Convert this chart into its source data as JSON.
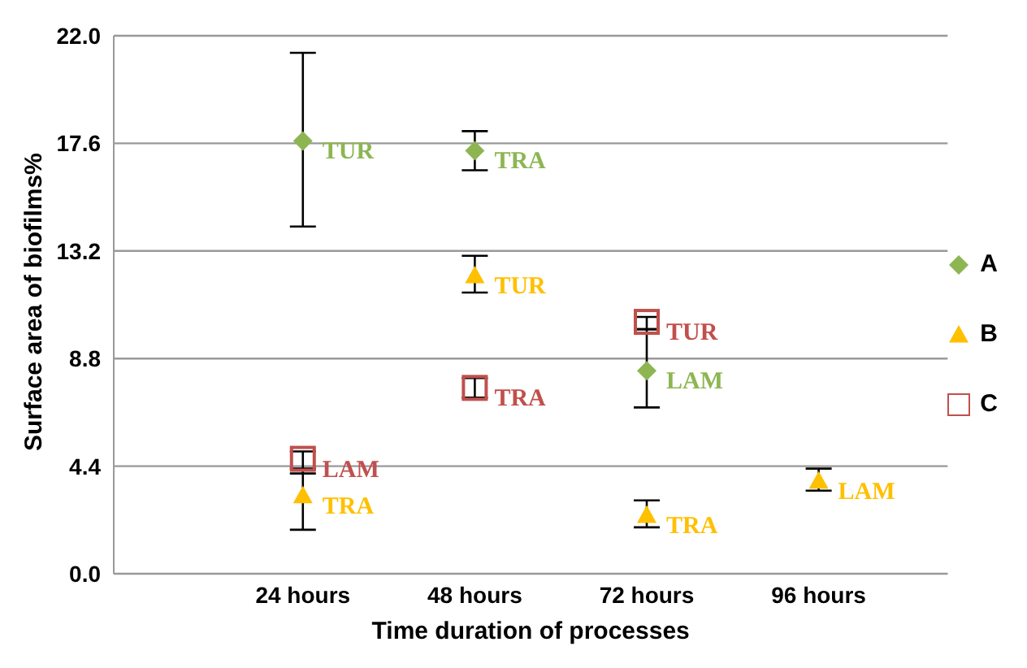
{
  "chart_data": {
    "type": "scatter",
    "xlabel": "Time duration of processes",
    "ylabel": "Surface area of biofilms%",
    "categories": [
      "24 hours",
      "48 hours",
      "72 hours",
      "96 hours"
    ],
    "series": [
      {
        "name": "A",
        "color": "#8db653",
        "marker": "diamond",
        "values": [
          17.7,
          17.3,
          8.3,
          null
        ],
        "errors": [
          [
            14.2,
            21.3
          ],
          [
            16.5,
            18.1
          ],
          [
            6.8,
            10.0
          ],
          null
        ]
      },
      {
        "name": "B",
        "color": "#ffc000",
        "marker": "triangle",
        "values": [
          3.2,
          12.2,
          2.4,
          3.8
        ],
        "errors": [
          [
            1.8,
            4.3
          ],
          [
            11.5,
            13.0
          ],
          [
            1.9,
            3.0
          ],
          [
            3.4,
            4.3
          ]
        ]
      },
      {
        "name": "C",
        "color": "#c0504d",
        "marker": "square",
        "values": [
          4.7,
          7.6,
          10.3,
          null
        ],
        "errors": [
          [
            4.1,
            5.0
          ],
          [
            7.2,
            8.0
          ],
          [
            10.0,
            10.5
          ],
          null
        ]
      }
    ],
    "annotations": [
      {
        "text": "TUR",
        "x": "24 hours",
        "y": 17.7
      },
      {
        "text": "TRA",
        "x": "48 hours",
        "y": 17.3
      },
      {
        "text": "LAM",
        "x": "72 hours",
        "y": 8.3
      },
      {
        "text": "TRA",
        "x": "24 hours",
        "y": 3.2
      },
      {
        "text": "TUR",
        "x": "48 hours",
        "y": 12.2
      },
      {
        "text": "TRA",
        "x": "72 hours",
        "y": 2.4
      },
      {
        "text": "LAM",
        "x": "96 hours",
        "y": 3.8
      },
      {
        "text": "LAM",
        "x": "24 hours",
        "y": 4.7
      },
      {
        "text": "TRA",
        "x": "48 hours",
        "y": 7.6
      },
      {
        "text": "TUR",
        "x": "72 hours",
        "y": 10.3
      }
    ],
    "ylim": [
      0,
      22
    ],
    "yticks": [
      {
        "value": 0,
        "label": "0.0"
      },
      4.4,
      8.8,
      13.2,
      17.6,
      {
        "value": 22,
        "label": "22.0"
      }
    ],
    "grid": "y",
    "legend": "right"
  }
}
